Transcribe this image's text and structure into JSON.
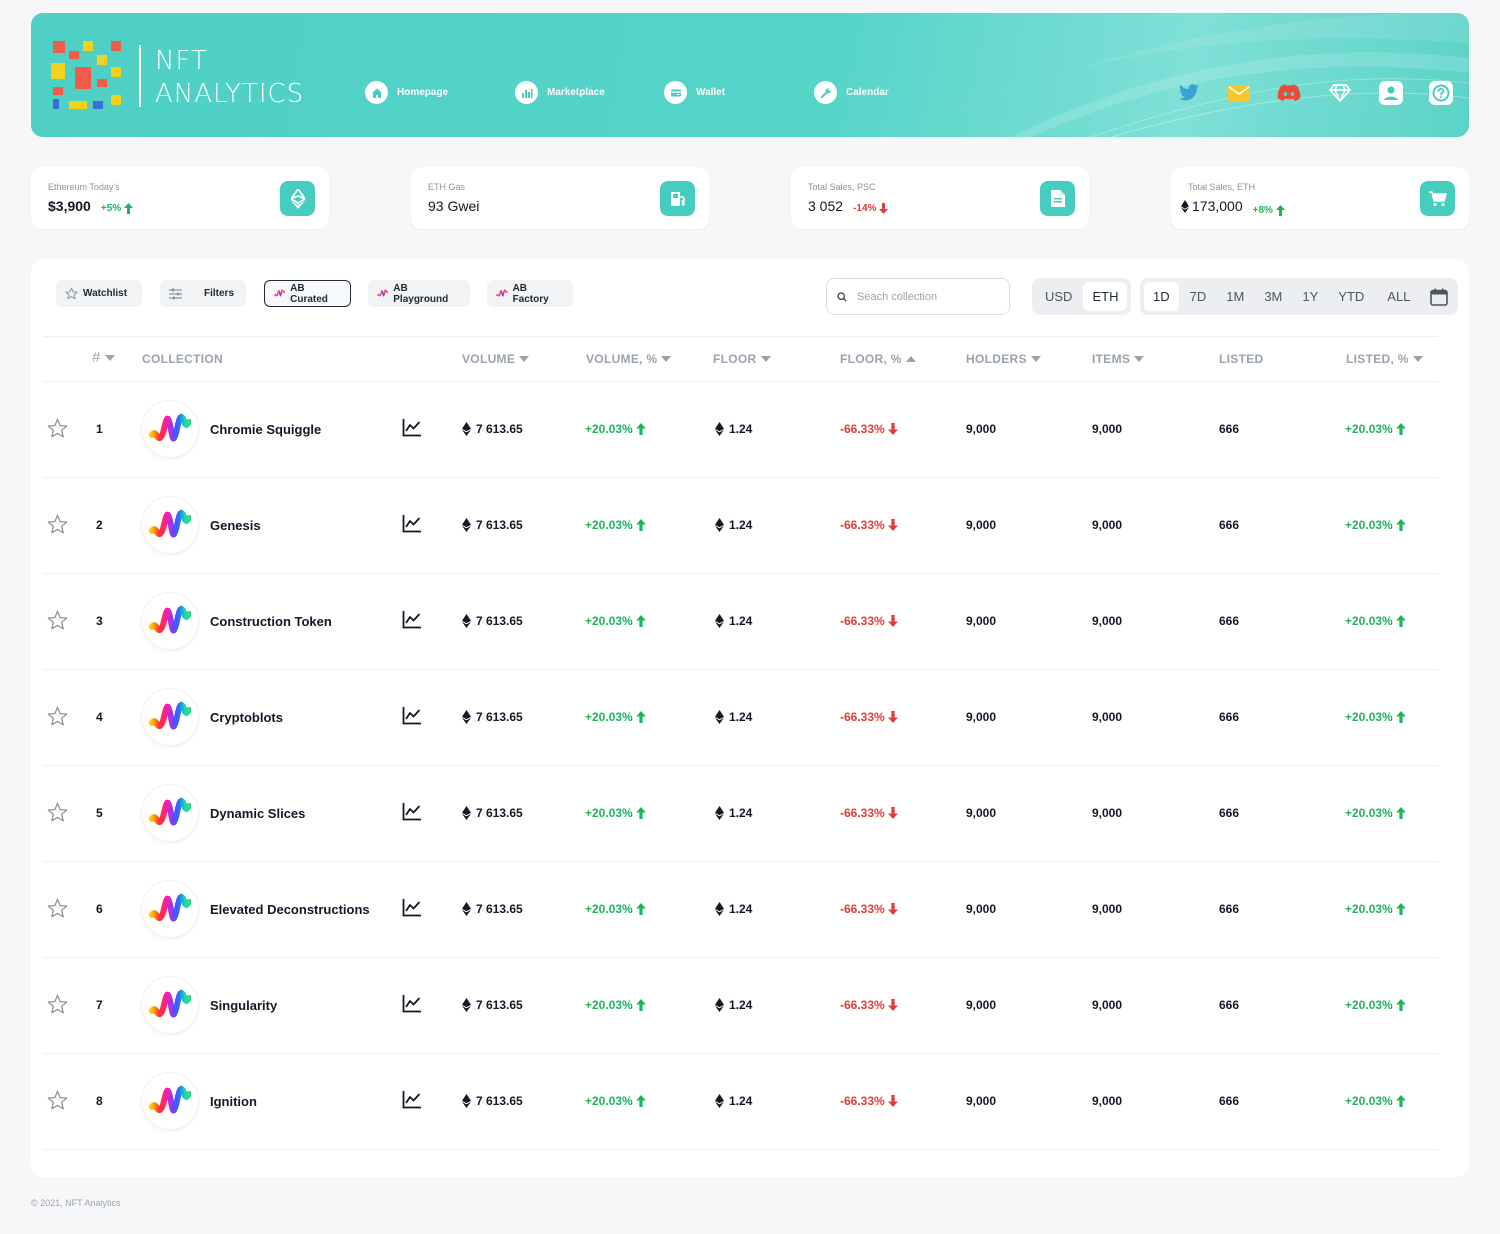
{
  "brand": {
    "line1": "NFT",
    "line2": "ANALYTICS"
  },
  "nav": [
    {
      "label": "Homepage",
      "icon": "home-icon"
    },
    {
      "label": "Marketplace",
      "icon": "bar-chart-icon"
    },
    {
      "label": "Wallet",
      "icon": "wallet-icon"
    },
    {
      "label": "Calendar",
      "icon": "wrench-icon"
    }
  ],
  "social": [
    "twitter-icon",
    "mail-icon",
    "discord-icon",
    "diamond-icon",
    "user-icon",
    "help-icon"
  ],
  "stats": [
    {
      "label": "Ethereum Today's",
      "value": "$3,900",
      "change": "+5%",
      "dir": "up",
      "icon": "ethereum-icon"
    },
    {
      "label": "ETH Gas",
      "value": "93 Gwei",
      "change": "",
      "dir": "",
      "icon": "gas-pump-icon"
    },
    {
      "label": "Total Sales, PSC",
      "value": "3 052",
      "change": "-14%",
      "dir": "down",
      "icon": "document-icon"
    },
    {
      "label": "Total Sales, ETH",
      "value": "173,000",
      "change": "+8%",
      "dir": "up",
      "icon": "cart-icon"
    }
  ],
  "filters": {
    "watchlist": "Watchlist",
    "filters": "Filters",
    "tabs": [
      "AB Curated",
      "AB Playground",
      "AB Factory"
    ]
  },
  "search": {
    "placeholder": "Seach collection",
    "value": ""
  },
  "currency": {
    "options": [
      "USD",
      "ETH"
    ],
    "selected": "ETH"
  },
  "periods": {
    "options": [
      "1D",
      "7D",
      "1M",
      "3M",
      "1Y",
      "YTD",
      "ALL"
    ],
    "selected": "1D"
  },
  "columns": {
    "rank": "#",
    "collection": "COLLECTION",
    "volume": "VOLUME",
    "volume_pct": "VOLUME, %",
    "floor": "FLOOR",
    "floor_pct": "FLOOR, %",
    "holders": "HOLDERS",
    "items": "ITEMS",
    "listed": "LISTED",
    "listed_pct": "LISTED, %"
  },
  "rows": [
    {
      "rank": "1",
      "name": "Chromie Squiggle",
      "volume": "7 613.65",
      "volume_pct": "+20.03%",
      "floor": "1.24",
      "floor_pct": "-66.33%",
      "holders": "9,000",
      "items": "9,000",
      "listed": "666",
      "listed_pct": "+20.03%"
    },
    {
      "rank": "2",
      "name": "Genesis",
      "volume": "7 613.65",
      "volume_pct": "+20.03%",
      "floor": "1.24",
      "floor_pct": "-66.33%",
      "holders": "9,000",
      "items": "9,000",
      "listed": "666",
      "listed_pct": "+20.03%"
    },
    {
      "rank": "3",
      "name": "Construction Token",
      "volume": "7 613.65",
      "volume_pct": "+20.03%",
      "floor": "1.24",
      "floor_pct": "-66.33%",
      "holders": "9,000",
      "items": "9,000",
      "listed": "666",
      "listed_pct": "+20.03%"
    },
    {
      "rank": "4",
      "name": "Cryptoblots",
      "volume": "7 613.65",
      "volume_pct": "+20.03%",
      "floor": "1.24",
      "floor_pct": "-66.33%",
      "holders": "9,000",
      "items": "9,000",
      "listed": "666",
      "listed_pct": "+20.03%"
    },
    {
      "rank": "5",
      "name": "Dynamic Slices",
      "volume": "7 613.65",
      "volume_pct": "+20.03%",
      "floor": "1.24",
      "floor_pct": "-66.33%",
      "holders": "9,000",
      "items": "9,000",
      "listed": "666",
      "listed_pct": "+20.03%"
    },
    {
      "rank": "6",
      "name": "Elevated Deconstructions",
      "volume": "7 613.65",
      "volume_pct": "+20.03%",
      "floor": "1.24",
      "floor_pct": "-66.33%",
      "holders": "9,000",
      "items": "9,000",
      "listed": "666",
      "listed_pct": "+20.03%"
    },
    {
      "rank": "7",
      "name": "Singularity",
      "volume": "7 613.65",
      "volume_pct": "+20.03%",
      "floor": "1.24",
      "floor_pct": "-66.33%",
      "holders": "9,000",
      "items": "9,000",
      "listed": "666",
      "listed_pct": "+20.03%"
    },
    {
      "rank": "8",
      "name": "Ignition",
      "volume": "7 613.65",
      "volume_pct": "+20.03%",
      "floor": "1.24",
      "floor_pct": "-66.33%",
      "holders": "9,000",
      "items": "9,000",
      "listed": "666",
      "listed_pct": "+20.03%"
    }
  ],
  "footer": "© 2021, NFT Analytics",
  "colors": {
    "accent": "#47cdbf",
    "header": "#55d4c8",
    "up": "#22b35e",
    "down": "#e23b3b"
  }
}
